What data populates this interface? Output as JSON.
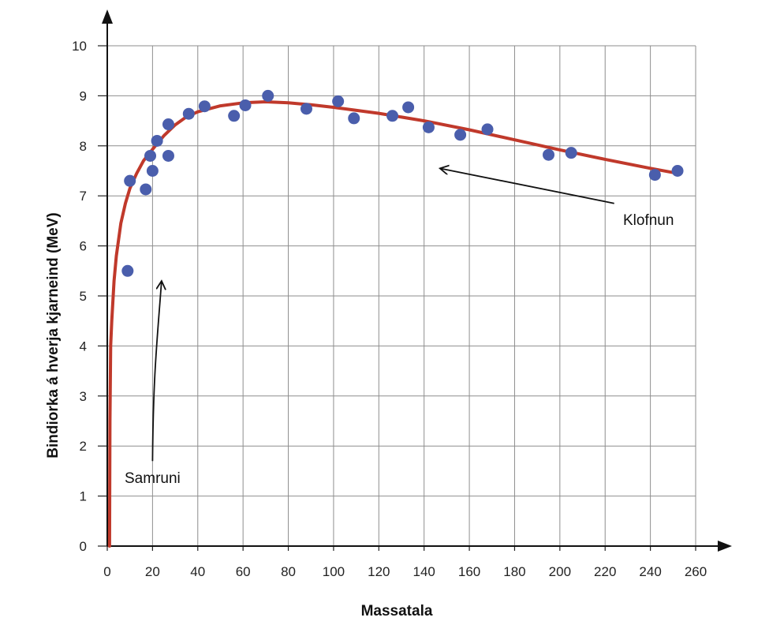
{
  "chart_data": {
    "type": "scatter",
    "xlabel": "Massatala",
    "ylabel": "Bindiorka á hverja kjarneind (MeV)",
    "xlim": [
      0,
      260
    ],
    "ylim": [
      0,
      10
    ],
    "x_ticks": [
      "0",
      "20",
      "40",
      "60",
      "80",
      "100",
      "120",
      "140",
      "160",
      "180",
      "200",
      "220",
      "240",
      "260"
    ],
    "y_ticks": [
      "0",
      "1",
      "2",
      "3",
      "4",
      "5",
      "6",
      "7",
      "8",
      "9",
      "10"
    ],
    "grid": true,
    "series": [
      {
        "type": "scatter",
        "color": "#4a5eac",
        "points": [
          {
            "x": 9,
            "y": 5.5
          },
          {
            "x": 10,
            "y": 7.3
          },
          {
            "x": 17,
            "y": 7.13
          },
          {
            "x": 19,
            "y": 7.8
          },
          {
            "x": 20,
            "y": 7.5
          },
          {
            "x": 22,
            "y": 8.1
          },
          {
            "x": 27,
            "y": 8.43
          },
          {
            "x": 27,
            "y": 7.8
          },
          {
            "x": 36,
            "y": 8.64
          },
          {
            "x": 43,
            "y": 8.79
          },
          {
            "x": 56,
            "y": 8.6
          },
          {
            "x": 61,
            "y": 8.81
          },
          {
            "x": 71,
            "y": 9.0
          },
          {
            "x": 88,
            "y": 8.74
          },
          {
            "x": 102,
            "y": 8.89
          },
          {
            "x": 109,
            "y": 8.55
          },
          {
            "x": 126,
            "y": 8.6
          },
          {
            "x": 133,
            "y": 8.77
          },
          {
            "x": 142,
            "y": 8.37
          },
          {
            "x": 156,
            "y": 8.22
          },
          {
            "x": 168,
            "y": 8.33
          },
          {
            "x": 195,
            "y": 7.82
          },
          {
            "x": 205,
            "y": 7.86
          },
          {
            "x": 242,
            "y": 7.42
          },
          {
            "x": 252,
            "y": 7.5
          }
        ]
      },
      {
        "type": "line",
        "color": "#c0392b",
        "points": [
          {
            "x": 1,
            "y": 0
          },
          {
            "x": 1.2,
            "y": 2.5
          },
          {
            "x": 1.5,
            "y": 4.0
          },
          {
            "x": 2,
            "y": 4.5
          },
          {
            "x": 3,
            "y": 5.3
          },
          {
            "x": 4,
            "y": 5.8
          },
          {
            "x": 6,
            "y": 6.45
          },
          {
            "x": 8,
            "y": 6.85
          },
          {
            "x": 10,
            "y": 7.15
          },
          {
            "x": 13,
            "y": 7.45
          },
          {
            "x": 16,
            "y": 7.7
          },
          {
            "x": 20,
            "y": 7.93
          },
          {
            "x": 25,
            "y": 8.2
          },
          {
            "x": 30,
            "y": 8.42
          },
          {
            "x": 35,
            "y": 8.58
          },
          {
            "x": 40,
            "y": 8.68
          },
          {
            "x": 50,
            "y": 8.8
          },
          {
            "x": 60,
            "y": 8.86
          },
          {
            "x": 70,
            "y": 8.88
          },
          {
            "x": 80,
            "y": 8.86
          },
          {
            "x": 90,
            "y": 8.82
          },
          {
            "x": 100,
            "y": 8.77
          },
          {
            "x": 120,
            "y": 8.65
          },
          {
            "x": 140,
            "y": 8.5
          },
          {
            "x": 160,
            "y": 8.32
          },
          {
            "x": 180,
            "y": 8.12
          },
          {
            "x": 200,
            "y": 7.92
          },
          {
            "x": 220,
            "y": 7.73
          },
          {
            "x": 240,
            "y": 7.55
          },
          {
            "x": 252,
            "y": 7.45
          }
        ]
      }
    ],
    "annotations": [
      {
        "text": "Samruni",
        "arrow_from": {
          "x": 20,
          "y": 1.7
        },
        "arrow_to": {
          "x": 24,
          "y": 5.3
        }
      },
      {
        "text": "Klofnun",
        "arrow_from": {
          "x": 224,
          "y": 6.85
        },
        "arrow_to": {
          "x": 147,
          "y": 7.55
        }
      }
    ]
  }
}
